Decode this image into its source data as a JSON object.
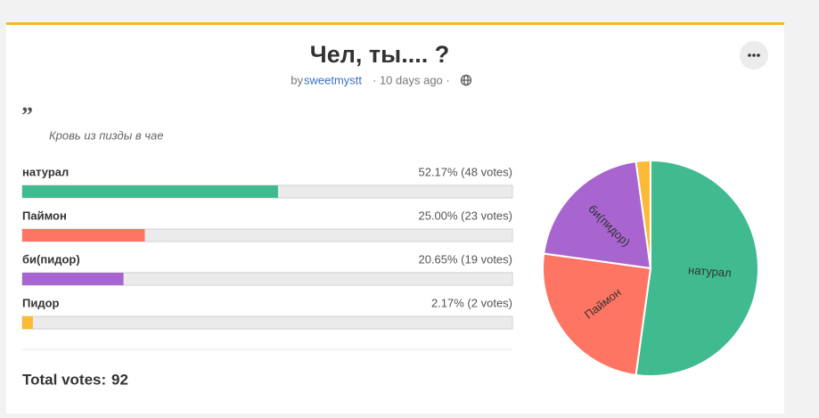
{
  "poll": {
    "title": "Чел, ты.... ?",
    "by": "by",
    "author": "sweetmystt",
    "time": "· 10 days ago ·",
    "description": "Кровь из пизды в чае",
    "total_label": "Total votes:",
    "total": 92
  },
  "chart_data": {
    "type": "pie",
    "categories": [
      "натурал",
      "Паймон",
      "би(пидор)",
      "Пидор"
    ],
    "values": [
      52.17,
      25.0,
      20.65,
      2.17
    ],
    "value_labels": [
      "52.17% (48 votes)",
      "25.00% (23 votes)",
      "20.65% (19 votes)",
      "2.17% (2 votes)"
    ],
    "colors": [
      "#40bb8f",
      "#ff7563",
      "#a865cf",
      "#fbbb38"
    ]
  }
}
